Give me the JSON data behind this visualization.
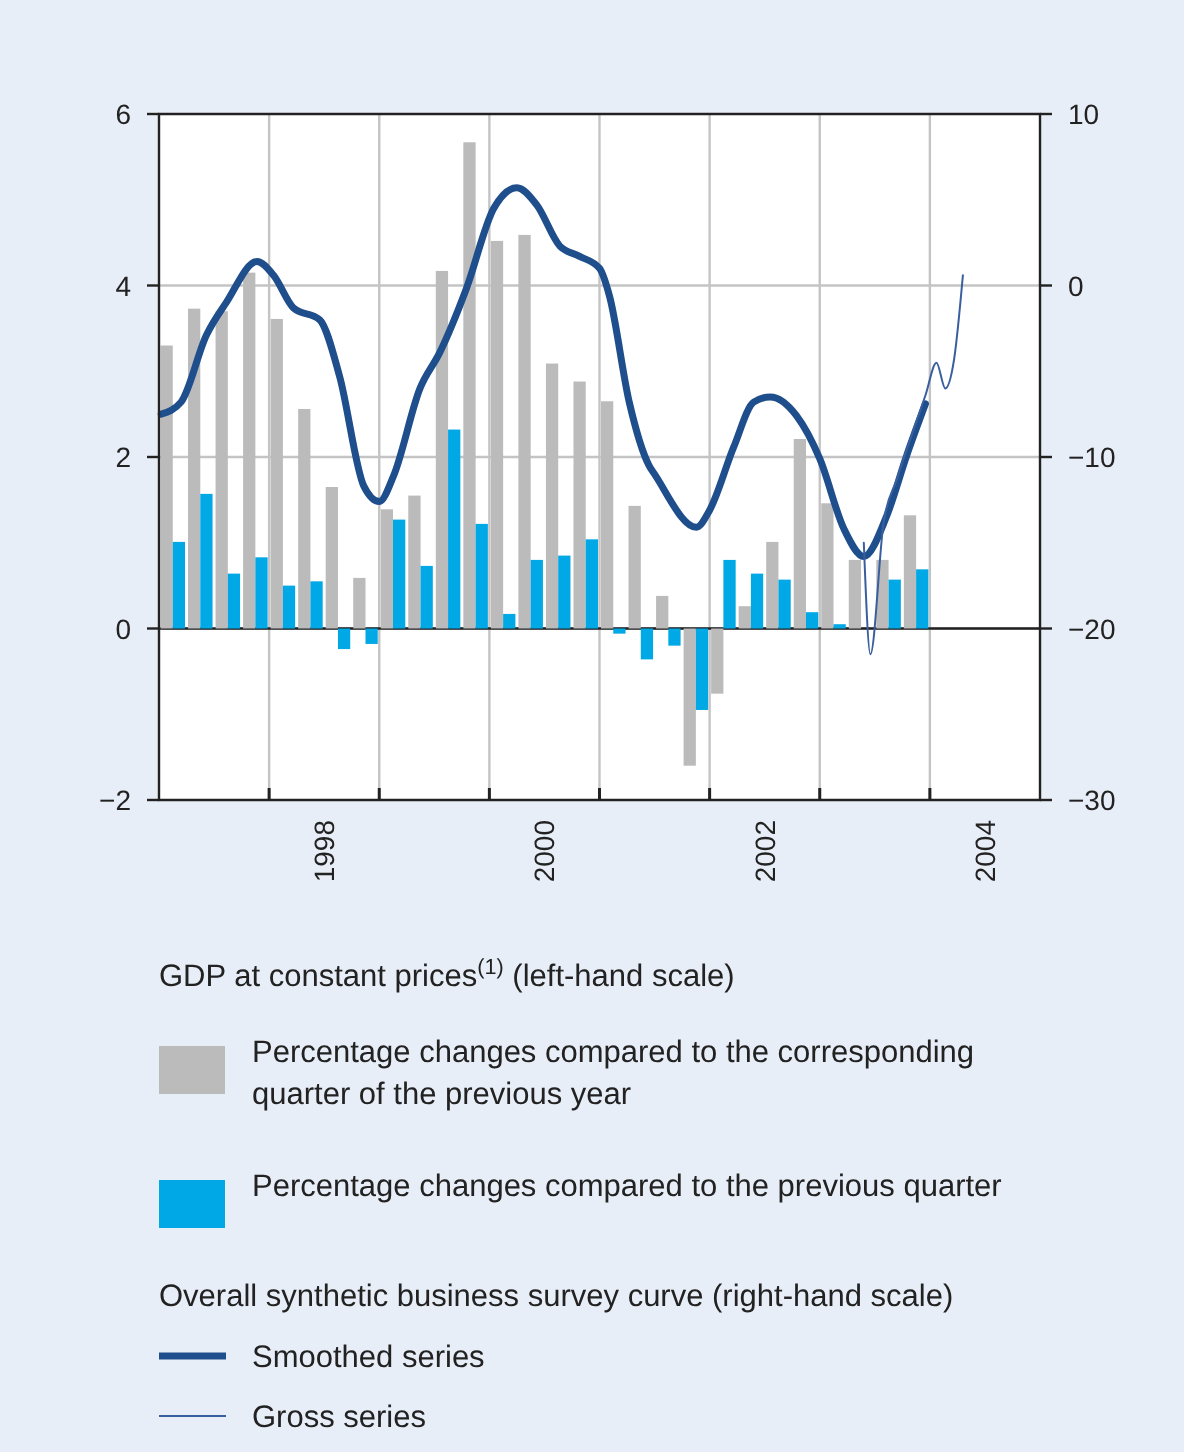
{
  "chart_data": {
    "type": "bar",
    "x": [
      1997.125,
      1997.375,
      1997.625,
      1997.875,
      1998.125,
      1998.375,
      1998.625,
      1998.875,
      1999.125,
      1999.375,
      1999.625,
      1999.875,
      2000.125,
      2000.375,
      2000.625,
      2000.875,
      2001.125,
      2001.375,
      2001.625,
      2001.875,
      2002.125,
      2002.375,
      2002.625,
      2002.875,
      2003.125,
      2003.375,
      2003.625,
      2003.875
    ],
    "series": [
      {
        "name": "Percentage changes compared to the corresponding quarter of the previous year",
        "color": "#bbbbbb",
        "values": [
          3.3,
          3.73,
          3.7,
          4.15,
          3.61,
          2.56,
          1.65,
          0.59,
          1.39,
          1.55,
          4.17,
          5.67,
          4.52,
          4.59,
          3.09,
          2.88,
          2.65,
          1.43,
          0.38,
          -1.6,
          -0.76,
          0.26,
          1.01,
          2.21,
          1.46,
          0.8,
          0.8,
          1.32
        ]
      },
      {
        "name": "Percentage changes compared to the previous quarter",
        "color": "#00a8e6",
        "values": [
          1.01,
          1.57,
          0.64,
          0.83,
          0.5,
          0.55,
          -0.24,
          -0.18,
          1.27,
          0.73,
          2.32,
          1.22,
          0.17,
          0.8,
          0.85,
          1.04,
          -0.06,
          -0.36,
          -0.2,
          -0.95,
          0.8,
          0.64,
          0.57,
          0.19,
          0.05,
          null,
          0.57,
          0.69
        ]
      },
      {
        "name": "Smoothed series",
        "type": "line",
        "axis": "y2",
        "color": "#1f4e8c",
        "x": [
          1997.02,
          1997.2,
          1997.43,
          1997.61,
          1997.89,
          1998.04,
          1998.22,
          1998.46,
          1998.64,
          1998.86,
          1999.0,
          1999.13,
          1999.37,
          1999.55,
          1999.79,
          2000.04,
          2000.25,
          2000.43,
          2000.64,
          2000.82,
          2001.0,
          2001.09,
          2001.27,
          2001.45,
          2001.5,
          2001.88,
          2002.0,
          2002.22,
          2002.4,
          2002.55,
          2002.79,
          2003.0,
          2003.22,
          2003.4,
          2003.61,
          2003.79,
          2003.96
        ],
        "values": [
          -7.5,
          -6.8,
          -2.9,
          -1.0,
          1.4,
          0.6,
          -1.3,
          -2.0,
          -5.3,
          -11.7,
          -12.6,
          -11.1,
          -6.0,
          -3.9,
          -0.2,
          4.5,
          5.7,
          4.7,
          2.3,
          1.7,
          1.0,
          -0.6,
          -6.8,
          -10.5,
          -11.0,
          -14.1,
          -13.1,
          -9.4,
          -6.8,
          -6.5,
          -7.6,
          -10.1,
          -14.2,
          -15.8,
          -13.4,
          -9.9,
          -6.9
        ]
      },
      {
        "name": "Gross series",
        "type": "line",
        "axis": "y2",
        "color": "#3a5f9e",
        "x": [
          2003.4,
          2003.46,
          2003.58,
          2003.7,
          2003.96,
          2004.06,
          2004.14,
          2004.22,
          2004.3
        ],
        "values": [
          -15.0,
          -21.5,
          -13.8,
          -11.3,
          -6.4,
          -4.5,
          -6.0,
          -4.3,
          0.6
        ]
      }
    ],
    "xlim": [
      1997,
      2005
    ],
    "xticks": [
      {
        "value": 1998,
        "label": null
      },
      {
        "value": 1999,
        "label": null
      },
      {
        "value": 2000,
        "label": null
      },
      {
        "value": 2001,
        "label": null
      },
      {
        "value": 2002,
        "label": null
      },
      {
        "value": 2003,
        "label": null
      },
      {
        "value": 2004,
        "label": null
      },
      {
        "value": 1998.5,
        "label": "1998"
      },
      {
        "value": 2000.5,
        "label": "2000"
      },
      {
        "value": 2002.5,
        "label": "2002"
      },
      {
        "value": 2004.5,
        "label": "2004"
      }
    ],
    "ylim": [
      -2,
      6
    ],
    "yticks": [
      {
        "value": -2,
        "label": "−2"
      },
      0,
      2,
      4,
      6
    ],
    "y2lim": [
      -30,
      10
    ],
    "y2ticks": [
      {
        "value": -30,
        "label": "−30"
      },
      {
        "value": -20,
        "label": "−20"
      },
      {
        "value": -10,
        "label": "−10"
      },
      0,
      10
    ],
    "grid": true,
    "legend": "bottom",
    "annotations": [
      "GDP at constant prices$^{(1)}$ (left-hand scale)",
      "Overall synthetic business survey curve (right-hand scale)"
    ]
  }
}
